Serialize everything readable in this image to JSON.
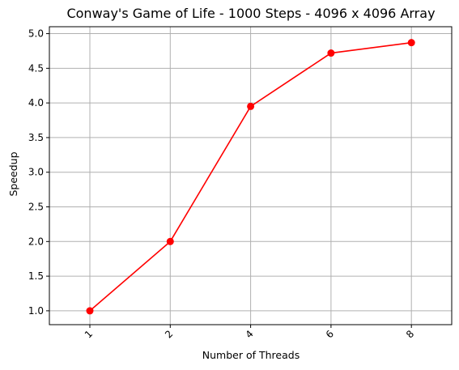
{
  "chart_data": {
    "type": "line",
    "title": "Conway's Game of Life - 1000 Steps - 4096 x 4096 Array",
    "xlabel": "Number of Threads",
    "ylabel": "Speedup",
    "categories": [
      "1",
      "2",
      "4",
      "6",
      "8"
    ],
    "series": [
      {
        "values": [
          1.0,
          2.0,
          3.95,
          4.72,
          4.87
        ],
        "color": "#ff0000",
        "marker": "circle"
      }
    ],
    "ylim": [
      0.8,
      5.1
    ],
    "yticks": [
      1.0,
      1.5,
      2.0,
      2.5,
      3.0,
      3.5,
      4.0,
      4.5,
      5.0
    ],
    "ytick_labels": [
      "1.0",
      "1.5",
      "2.0",
      "2.5",
      "3.0",
      "3.5",
      "4.0",
      "4.5",
      "5.0"
    ],
    "xtick_rotation": 45,
    "grid": true,
    "grid_color": "#b0b0b0"
  }
}
